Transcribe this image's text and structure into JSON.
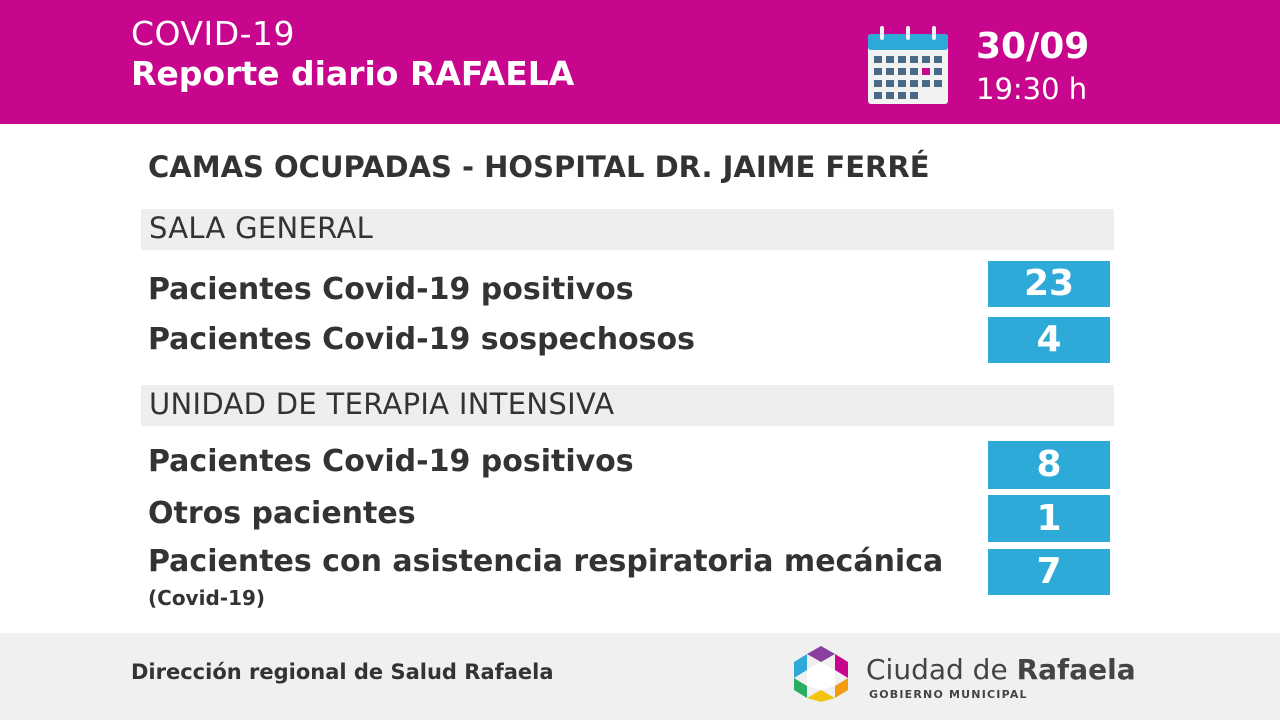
{
  "header": {
    "line1": "COVID-19",
    "line2": "Reporte diario RAFAELA",
    "date": "30/09",
    "time": "19:30 h",
    "icon": "calendar-icon",
    "bg_color": "#c8068d"
  },
  "title": "CAMAS OCUPADAS - HOSPITAL DR. JAIME FERRÉ",
  "sections": [
    {
      "label": "SALA GENERAL",
      "rows": [
        {
          "label": "Pacientes Covid-19 positivos",
          "value": "23"
        },
        {
          "label": "Pacientes Covid-19 sospechosos",
          "value": "4"
        }
      ]
    },
    {
      "label": "UNIDAD DE TERAPIA INTENSIVA",
      "rows": [
        {
          "label": "Pacientes Covid-19 positivos",
          "value": "8"
        },
        {
          "label": "Otros pacientes",
          "value": "1"
        },
        {
          "label": "Pacientes con asistencia respiratoria mecánica",
          "sublabel": "(Covid-19)",
          "value": "7"
        }
      ]
    }
  ],
  "value_color": "#2eaad8",
  "footer": {
    "text": "Dirección regional de Salud Rafaela",
    "logo_name_light": "Ciudad de ",
    "logo_name_bold": "Rafaela",
    "logo_sub": "GOBIERNO MUNICIPAL",
    "logo_icon": "city-logo-icon"
  }
}
